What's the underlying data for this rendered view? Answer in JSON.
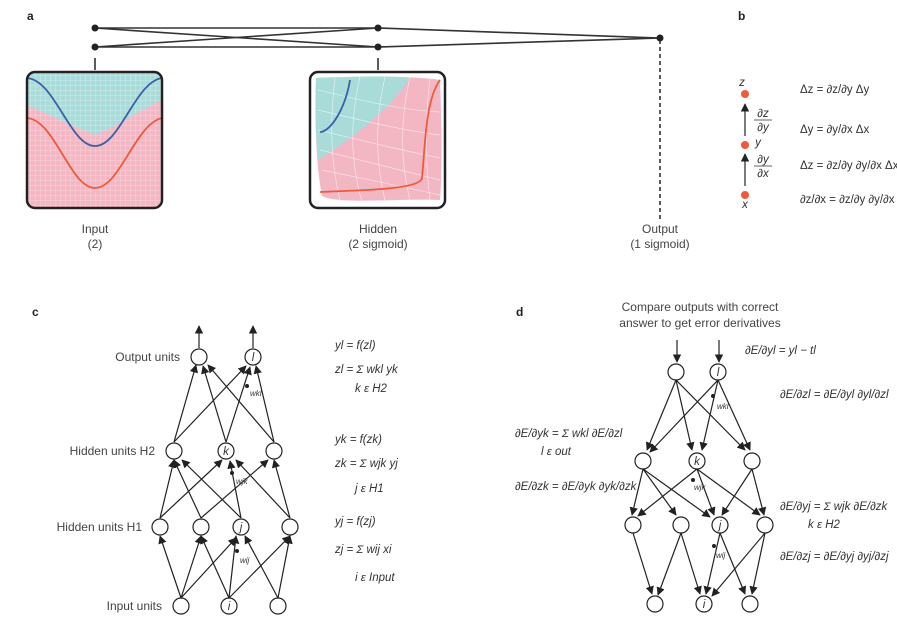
{
  "panels": {
    "a": "a",
    "b": "b",
    "c": "c",
    "d": "d"
  },
  "panel_a": {
    "input_label": "Input",
    "input_count": "(2)",
    "hidden_label": "Hidden",
    "hidden_count": "(2 sigmoid)",
    "output_label": "Output",
    "output_count": "(1 sigmoid)"
  },
  "panel_b": {
    "nodes": [
      "z",
      "y",
      "x"
    ],
    "deriv_top_num": "∂z",
    "deriv_top_den": "∂y",
    "deriv_bot_num": "∂y",
    "deriv_bot_den": "∂x",
    "eq1": "Δz = ∂z/∂y Δy",
    "eq2": "Δy = ∂y/∂x Δx",
    "eq3": "Δz = ∂z/∂y ∂y/∂x Δx",
    "eq4": "∂z/∂x = ∂z/∂y ∂y/∂x"
  },
  "panel_c": {
    "row_labels": [
      "Output units",
      "Hidden units H2",
      "Hidden units H1",
      "Input units"
    ],
    "node_labels": {
      "l": "l",
      "k": "k",
      "j": "j",
      "i": "i"
    },
    "weights": [
      "wkl",
      "wjk",
      "wij"
    ],
    "eq_out_1": "yl = f(zl)",
    "eq_out_2": "zl = Σ wkl yk",
    "eq_out_sum": "k ε H2",
    "eq_h2_1": "yk = f(zk)",
    "eq_h2_2": "zk = Σ wjk yj",
    "eq_h2_sum": "j ε H1",
    "eq_h1_1": "yj = f(zj)",
    "eq_h1_2": "zj = Σ wij xi",
    "eq_h1_sum": "i ε Input"
  },
  "panel_d": {
    "caption_line1": "Compare outputs with correct",
    "caption_line2": "answer to get error derivatives",
    "eq1": "∂E/∂yl = yl − tl",
    "eq2": "∂E/∂zl = ∂E/∂yl ∂yl/∂zl",
    "eq3": "∂E/∂yk = Σ wkl ∂E/∂zl",
    "eq3_sum": "l ε out",
    "eq4": "∂E/∂zk = ∂E/∂yk ∂yk/∂zk",
    "eq5": "∂E/∂yj = Σ wjk ∂E/∂zk",
    "eq5_sum": "k ε H2",
    "eq6": "∂E/∂zj = ∂E/∂yj ∂yj/∂zj"
  },
  "colors": {
    "blue_region": "#a9dcd9",
    "pink_region": "#f3b6c3",
    "blue_curve": "#3a5fa8",
    "red_curve": "#ef5a3c",
    "node_red": "#ef5a3c",
    "line": "#333333"
  }
}
